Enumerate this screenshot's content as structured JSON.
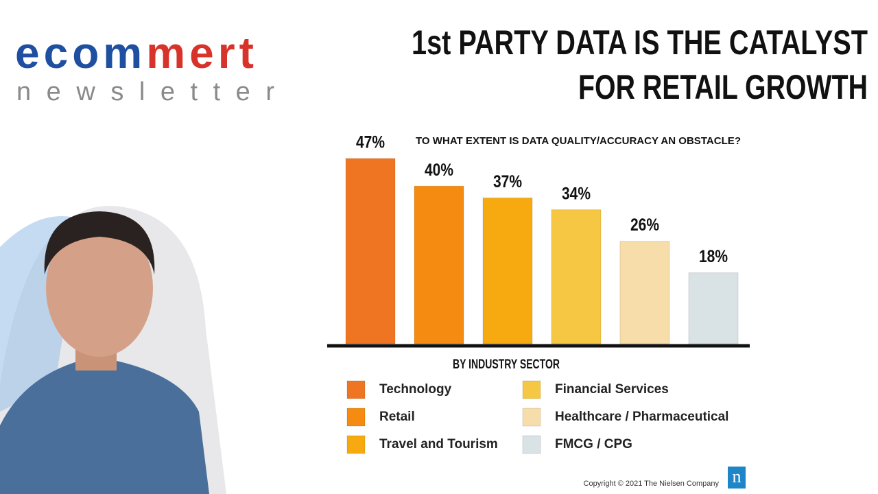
{
  "logo": {
    "part1": "ecom",
    "part2": "mert",
    "subtitle": "newsletter"
  },
  "headline": [
    "1st PARTY DATA IS THE CATALYST",
    "FOR RETAIL GROWTH"
  ],
  "chart_data": {
    "type": "bar",
    "title": "TO WHAT EXTENT IS DATA QUALITY/ACCURACY AN OBSTACLE?",
    "x_label": "BY INDUSTRY SECTOR",
    "categories": [
      "Technology",
      "Retail",
      "Travel and Tourism",
      "Financial Services",
      "Healthcare / Pharmaceutical",
      "FMCG / CPG"
    ],
    "values": [
      47,
      40,
      37,
      34,
      26,
      18
    ],
    "value_labels": [
      "47%",
      "40%",
      "37%",
      "34%",
      "26%",
      "18%"
    ],
    "colors": [
      "#f07522",
      "#f58b10",
      "#f6aa10",
      "#f5c742",
      "#f7dda9",
      "#d9e2e4"
    ]
  },
  "footer": {
    "copyright": "Copyright © 2021 The Nielsen Company",
    "brand": "n"
  }
}
